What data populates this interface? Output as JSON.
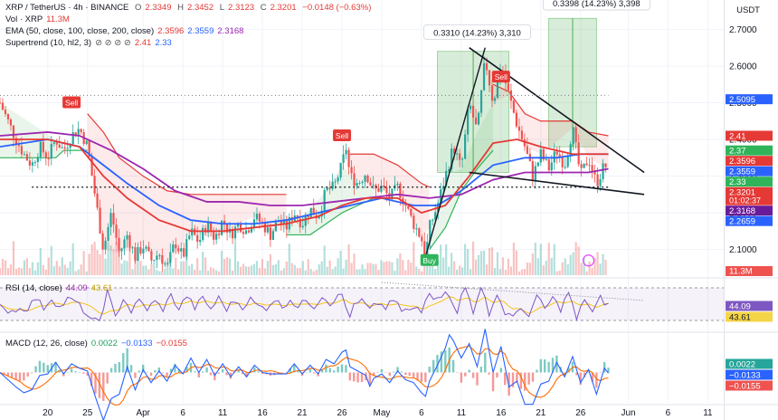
{
  "header": {
    "symbol": "XRP / TetherUS · 4h · BINANCE",
    "ohlc": [
      {
        "k": "O",
        "v": "2.3349"
      },
      {
        "k": "H",
        "v": "2.3452"
      },
      {
        "k": "L",
        "v": "2.3123"
      },
      {
        "k": "C",
        "v": "2.3201"
      }
    ],
    "change": "−0.0148 (−0.63%)",
    "currency": "USDT"
  },
  "indicators": {
    "vol": {
      "label": "Vol · XRP",
      "value": "11.3M"
    },
    "ema": {
      "label": "EMA (50, close, 100, close, 200, close)",
      "v1": "2.3596",
      "v2": "2.3559",
      "v3": "2.3168"
    },
    "supertrend": {
      "label": "Supertrend (10, hl2, 3)",
      "icons": "⊘ ⊘ ⊘ ⊘",
      "v1": "2.41",
      "v2": "2.33"
    },
    "rsi": {
      "label": "RSI (14, close)",
      "v1": "44.09",
      "v2": "43.61"
    },
    "macd": {
      "label": "MACD (12, 26, close)",
      "v1": "0.0022",
      "v2": "−0.0133",
      "v3": "−0.0155"
    }
  },
  "colors": {
    "up": "#26a69a",
    "down": "#ef5350",
    "ema50": "#e53935",
    "ema100": "#2962ff",
    "ema200": "#9c27b0",
    "st_up": "#2fb45a",
    "st_down": "#e53935",
    "rsi": "#7e57c2",
    "macd": "#2962ff",
    "signal": "#ff6d00"
  },
  "chart_data": {
    "type": "candlestick",
    "ylim": [
      2.03,
      2.78
    ],
    "price_ticks": [
      {
        "v": 2.7,
        "label": "2.7000"
      },
      {
        "v": 2.6,
        "label": "2.6000"
      },
      {
        "v": 2.5,
        "label": "2.5000"
      },
      {
        "v": 2.4,
        "label": "2.4000"
      },
      {
        "v": 2.3,
        "label": "2.3000"
      },
      {
        "v": 2.2,
        "label": "2.2000"
      },
      {
        "v": 2.1,
        "label": "2.1000"
      }
    ],
    "x_ticks": [
      {
        "d": -12,
        "label": "20"
      },
      {
        "d": -7,
        "label": "25"
      },
      {
        "d": 0,
        "label": "Apr"
      },
      {
        "d": 5,
        "label": "6"
      },
      {
        "d": 10,
        "label": "11"
      },
      {
        "d": 15,
        "label": "16"
      },
      {
        "d": 20,
        "label": "21"
      },
      {
        "d": 25,
        "label": "26"
      },
      {
        "d": 30,
        "label": "May"
      },
      {
        "d": 35,
        "label": "6"
      },
      {
        "d": 40,
        "label": "11"
      },
      {
        "d": 45,
        "label": "16"
      },
      {
        "d": 50,
        "label": "21"
      },
      {
        "d": 55,
        "label": "26"
      },
      {
        "d": 61,
        "label": "Jun"
      },
      {
        "d": 66,
        "label": "6"
      },
      {
        "d": 71,
        "label": "11"
      }
    ],
    "x_range": [
      -18,
      73
    ],
    "price_path": [
      [
        -18,
        2.5
      ],
      [
        -17,
        2.45
      ],
      [
        -16,
        2.4
      ],
      [
        -15,
        2.36
      ],
      [
        -14,
        2.33
      ],
      [
        -13,
        2.38
      ],
      [
        -12,
        2.35
      ],
      [
        -11,
        2.4
      ],
      [
        -10,
        2.37
      ],
      [
        -9,
        2.41
      ],
      [
        -8,
        2.43
      ],
      [
        -7,
        2.38
      ],
      [
        -6,
        2.24
      ],
      [
        -5,
        2.1
      ],
      [
        -4,
        2.2
      ],
      [
        -3,
        2.09
      ],
      [
        -2,
        2.14
      ],
      [
        -1,
        2.08
      ],
      [
        0,
        2.11
      ],
      [
        1,
        2.07
      ],
      [
        2,
        2.09
      ],
      [
        3,
        2.05
      ],
      [
        4,
        2.12
      ],
      [
        5,
        2.08
      ],
      [
        6,
        2.15
      ],
      [
        7,
        2.12
      ],
      [
        8,
        2.17
      ],
      [
        9,
        2.13
      ],
      [
        10,
        2.18
      ],
      [
        11,
        2.14
      ],
      [
        12,
        2.17
      ],
      [
        13,
        2.15
      ],
      [
        14,
        2.19
      ],
      [
        15,
        2.17
      ],
      [
        16,
        2.14
      ],
      [
        17,
        2.18
      ],
      [
        18,
        2.16
      ],
      [
        19,
        2.2
      ],
      [
        20,
        2.17
      ],
      [
        21,
        2.21
      ],
      [
        22,
        2.19
      ],
      [
        23,
        2.26
      ],
      [
        24,
        2.27
      ],
      [
        25,
        2.33
      ],
      [
        25.5,
        2.38
      ],
      [
        26,
        2.3
      ],
      [
        27,
        2.28
      ],
      [
        28,
        2.31
      ],
      [
        29,
        2.26
      ],
      [
        30,
        2.27
      ],
      [
        31,
        2.24
      ],
      [
        32,
        2.27
      ],
      [
        33,
        2.22
      ],
      [
        34,
        2.17
      ],
      [
        35,
        2.13
      ],
      [
        35.5,
        2.08
      ],
      [
        36,
        2.16
      ],
      [
        37,
        2.22
      ],
      [
        38,
        2.3
      ],
      [
        39,
        2.38
      ],
      [
        40,
        2.32
      ],
      [
        41,
        2.5
      ],
      [
        42,
        2.42
      ],
      [
        43,
        2.62
      ],
      [
        44,
        2.5
      ],
      [
        45,
        2.6
      ],
      [
        46,
        2.52
      ],
      [
        47,
        2.44
      ],
      [
        48,
        2.38
      ],
      [
        49,
        2.3
      ],
      [
        50,
        2.36
      ],
      [
        51,
        2.32
      ],
      [
        52,
        2.37
      ],
      [
        53,
        2.33
      ],
      [
        54,
        2.43
      ],
      [
        55,
        2.3
      ],
      [
        56,
        2.35
      ],
      [
        57,
        2.28
      ],
      [
        58,
        2.33
      ],
      [
        58.5,
        2.32
      ]
    ],
    "ema50": [
      [
        -18,
        2.4
      ],
      [
        -12,
        2.4
      ],
      [
        -8,
        2.38
      ],
      [
        -5,
        2.3
      ],
      [
        -2,
        2.24
      ],
      [
        2,
        2.18
      ],
      [
        6,
        2.15
      ],
      [
        10,
        2.15
      ],
      [
        14,
        2.16
      ],
      [
        18,
        2.17
      ],
      [
        22,
        2.19
      ],
      [
        25,
        2.22
      ],
      [
        28,
        2.24
      ],
      [
        32,
        2.24
      ],
      [
        35,
        2.2
      ],
      [
        38,
        2.22
      ],
      [
        41,
        2.3
      ],
      [
        44,
        2.39
      ],
      [
        47,
        2.4
      ],
      [
        50,
        2.38
      ],
      [
        54,
        2.36
      ],
      [
        58.5,
        2.36
      ]
    ],
    "ema100": [
      [
        -18,
        2.38
      ],
      [
        -12,
        2.4
      ],
      [
        -8,
        2.38
      ],
      [
        -5,
        2.33
      ],
      [
        -2,
        2.28
      ],
      [
        2,
        2.22
      ],
      [
        6,
        2.18
      ],
      [
        10,
        2.17
      ],
      [
        14,
        2.17
      ],
      [
        18,
        2.18
      ],
      [
        22,
        2.2
      ],
      [
        26,
        2.22
      ],
      [
        30,
        2.24
      ],
      [
        34,
        2.22
      ],
      [
        37,
        2.22
      ],
      [
        40,
        2.26
      ],
      [
        44,
        2.33
      ],
      [
        48,
        2.35
      ],
      [
        52,
        2.35
      ],
      [
        55,
        2.36
      ],
      [
        58.5,
        2.36
      ]
    ],
    "ema200": [
      [
        -18,
        2.41
      ],
      [
        -12,
        2.42
      ],
      [
        -8,
        2.41
      ],
      [
        -4,
        2.37
      ],
      [
        0,
        2.32
      ],
      [
        4,
        2.26
      ],
      [
        8,
        2.23
      ],
      [
        12,
        2.23
      ],
      [
        16,
        2.22
      ],
      [
        20,
        2.22
      ],
      [
        24,
        2.23
      ],
      [
        28,
        2.24
      ],
      [
        32,
        2.25
      ],
      [
        36,
        2.24
      ],
      [
        40,
        2.25
      ],
      [
        44,
        2.29
      ],
      [
        48,
        2.31
      ],
      [
        52,
        2.31
      ],
      [
        56,
        2.31
      ],
      [
        58.5,
        2.32
      ]
    ],
    "supertrend_green": [
      [
        -18,
        2.35
      ],
      [
        -11,
        2.35
      ],
      [
        -10,
        2.37
      ],
      [
        -7,
        2.37
      ]
    ],
    "supertrend_red": [
      [
        -7,
        2.47
      ],
      [
        -5,
        2.42
      ],
      [
        -3,
        2.35
      ],
      [
        0,
        2.3
      ],
      [
        3,
        2.26
      ],
      [
        6,
        2.25
      ],
      [
        9,
        2.25
      ],
      [
        12,
        2.25
      ],
      [
        14,
        2.25
      ],
      [
        16,
        2.25
      ],
      [
        18,
        2.25
      ]
    ],
    "supertrend_green2": [
      [
        18,
        2.14
      ],
      [
        21,
        2.14
      ],
      [
        23,
        2.17
      ],
      [
        25,
        2.2
      ],
      [
        27,
        2.22
      ],
      [
        29,
        2.24
      ]
    ],
    "supertrend_red2": [
      [
        26,
        2.36
      ],
      [
        29,
        2.36
      ],
      [
        32,
        2.33
      ],
      [
        35,
        2.28
      ],
      [
        36,
        2.27
      ]
    ],
    "supertrend_green3": [
      [
        36,
        2.1
      ],
      [
        38,
        2.16
      ],
      [
        40,
        2.26
      ],
      [
        42,
        2.32
      ],
      [
        44,
        2.37
      ]
    ],
    "supertrend_red3": [
      [
        44,
        2.55
      ],
      [
        46,
        2.53
      ],
      [
        48,
        2.47
      ],
      [
        50,
        2.45
      ],
      [
        54,
        2.45
      ],
      [
        56,
        2.42
      ],
      [
        58.5,
        2.41
      ]
    ],
    "triangle_upper": [
      [
        41,
        2.65
      ],
      [
        63,
        2.31
      ]
    ],
    "triangle_lower": [
      [
        41,
        2.31
      ],
      [
        63,
        2.25
      ]
    ],
    "rally_line": [
      [
        35.5,
        2.08
      ],
      [
        43,
        2.65
      ]
    ],
    "dotted_upper": [
      [
        -18,
        2.52
      ],
      [
        58.5,
        2.52
      ]
    ],
    "dotted_lower": [
      [
        -14,
        2.27
      ],
      [
        58.5,
        2.27
      ]
    ],
    "measure_boxes": [
      {
        "x0": 37,
        "x1": 46,
        "y0": 2.31,
        "y1": 2.64,
        "label": "0.3310 (14.23%) 3,310",
        "ld": 42,
        "lv": 2.69
      },
      {
        "x0": 51,
        "x1": 57,
        "y0": 2.38,
        "y1": 2.73,
        "label": "0.3398 (14.23%) 3,398",
        "ld": 57,
        "lv": 2.77
      }
    ],
    "signals": [
      {
        "d": -9,
        "v": 2.5,
        "label": "Sell",
        "kind": "sell"
      },
      {
        "d": 25,
        "v": 2.41,
        "label": "Sell",
        "kind": "sell"
      },
      {
        "d": 45,
        "v": 2.57,
        "label": "Sell",
        "kind": "sell"
      },
      {
        "d": 36,
        "v": 2.07,
        "label": "Buy",
        "kind": "buy"
      }
    ],
    "price_labels": [
      {
        "v": 2.5095,
        "label": "2.5095",
        "bg": "#2962ff"
      },
      {
        "v": 2.41,
        "label": "2.41",
        "bg": "#e53935"
      },
      {
        "v": 2.37,
        "label": "2.37",
        "bg": "#2fb45a"
      },
      {
        "v": 2.3596,
        "label": "2.3596",
        "bg": "#e53935"
      },
      {
        "v": 2.3559,
        "label": "2.3559",
        "bg": "#2962ff"
      },
      {
        "v": 2.33,
        "label": "2.33",
        "bg": "#2fb45a"
      },
      {
        "v": 2.3201,
        "label": "2.3201",
        "bg": "#e53935",
        "extra": "01:02:37"
      },
      {
        "v": 2.3168,
        "label": "2.3168",
        "bg": "#6a1b9a"
      },
      {
        "v": 2.2659,
        "label": "2.2659",
        "bg": "#2962ff"
      }
    ],
    "volume_label": "11.3M",
    "rsi_labels": [
      {
        "label": "44.09",
        "bg": "#7e57c2"
      },
      {
        "label": "43.61",
        "bg": "#f5d548",
        "fg": "#131722"
      }
    ],
    "macd_labels": [
      {
        "label": "0.0022",
        "bg": "#26a69a"
      },
      {
        "label": "−0.0133",
        "bg": "#2962ff"
      },
      {
        "label": "−0.0155",
        "bg": "#ef5350"
      }
    ]
  }
}
